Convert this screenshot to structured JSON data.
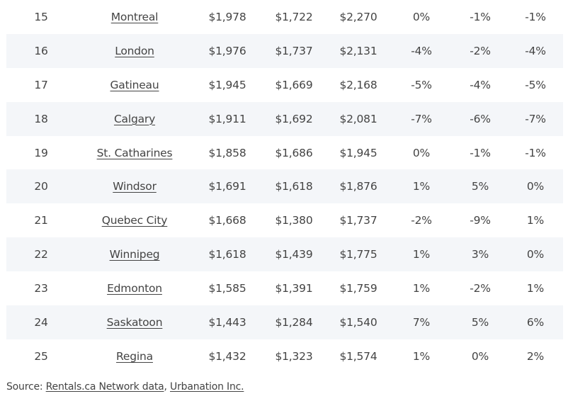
{
  "rows": [
    {
      "rank": "15",
      "city": "Montreal",
      "v1": "$1,978",
      "v2": "$1,722",
      "v3": "$2,270",
      "p1": "0%",
      "p2": "-1%",
      "p3": "-1%"
    },
    {
      "rank": "16",
      "city": "London",
      "v1": "$1,976",
      "v2": "$1,737",
      "v3": "$2,131",
      "p1": "-4%",
      "p2": "-2%",
      "p3": "-4%"
    },
    {
      "rank": "17",
      "city": "Gatineau",
      "v1": "$1,945",
      "v2": "$1,669",
      "v3": "$2,168",
      "p1": "-5%",
      "p2": "-4%",
      "p3": "-5%"
    },
    {
      "rank": "18",
      "city": "Calgary",
      "v1": "$1,911",
      "v2": "$1,692",
      "v3": "$2,081",
      "p1": "-7%",
      "p2": "-6%",
      "p3": "-7%"
    },
    {
      "rank": "19",
      "city": "St. Catharines",
      "v1": "$1,858",
      "v2": "$1,686",
      "v3": "$1,945",
      "p1": "0%",
      "p2": "-1%",
      "p3": "-1%"
    },
    {
      "rank": "20",
      "city": "Windsor",
      "v1": "$1,691",
      "v2": "$1,618",
      "v3": "$1,876",
      "p1": "1%",
      "p2": "5%",
      "p3": "0%"
    },
    {
      "rank": "21",
      "city": "Quebec City",
      "v1": "$1,668",
      "v2": "$1,380",
      "v3": "$1,737",
      "p1": "-2%",
      "p2": "-9%",
      "p3": "1%"
    },
    {
      "rank": "22",
      "city": "Winnipeg",
      "v1": "$1,618",
      "v2": "$1,439",
      "v3": "$1,775",
      "p1": "1%",
      "p2": "3%",
      "p3": "0%"
    },
    {
      "rank": "23",
      "city": "Edmonton",
      "v1": "$1,585",
      "v2": "$1,391",
      "v3": "$1,759",
      "p1": "1%",
      "p2": "-2%",
      "p3": "1%"
    },
    {
      "rank": "24",
      "city": "Saskatoon",
      "v1": "$1,443",
      "v2": "$1,284",
      "v3": "$1,540",
      "p1": "7%",
      "p2": "5%",
      "p3": "6%"
    },
    {
      "rank": "25",
      "city": "Regina",
      "v1": "$1,432",
      "v2": "$1,323",
      "v3": "$1,574",
      "p1": "1%",
      "p2": "0%",
      "p3": "2%"
    }
  ],
  "source": {
    "prefix": "Source: ",
    "link1": "Rentals.ca Network data",
    "separator": ", ",
    "link2": "Urbanation Inc."
  },
  "colors": {
    "text": "#444444",
    "row_shade": "#f4f6f9"
  }
}
